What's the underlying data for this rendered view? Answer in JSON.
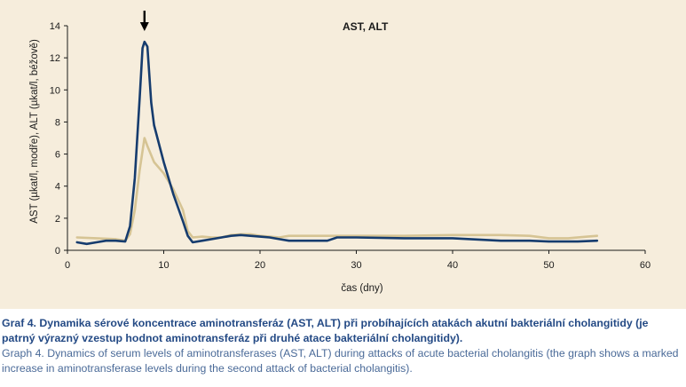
{
  "chart_data": {
    "type": "line",
    "title": "AST, ALT",
    "xlabel": "čas (dny)",
    "ylabel": "AST (µkat/l, modře), ALT (µkat/l, béžově)",
    "xlim": [
      0,
      60
    ],
    "ylim": [
      0,
      14
    ],
    "x_ticks": [
      "0",
      "10",
      "20",
      "30",
      "40",
      "50",
      "60"
    ],
    "y_ticks": [
      "0",
      "2",
      "4",
      "6",
      "8",
      "10",
      "12",
      "14"
    ],
    "grid": false,
    "annotation": {
      "type": "arrow",
      "x": 8,
      "pointing": "down"
    },
    "series": [
      {
        "name": "AST",
        "color": "#163c6e",
        "points": [
          [
            1,
            0.5
          ],
          [
            2,
            0.4
          ],
          [
            3,
            0.5
          ],
          [
            4,
            0.6
          ],
          [
            5,
            0.6
          ],
          [
            6,
            0.55
          ],
          [
            6.5,
            1.5
          ],
          [
            7,
            4.5
          ],
          [
            7.5,
            9.5
          ],
          [
            7.8,
            12.6
          ],
          [
            8,
            13.0
          ],
          [
            8.3,
            12.7
          ],
          [
            8.7,
            9.2
          ],
          [
            9,
            7.8
          ],
          [
            10,
            5.5
          ],
          [
            11,
            3.5
          ],
          [
            12,
            1.8
          ],
          [
            12.5,
            0.9
          ],
          [
            13,
            0.5
          ],
          [
            14,
            0.6
          ],
          [
            15,
            0.7
          ],
          [
            16,
            0.8
          ],
          [
            17,
            0.9
          ],
          [
            18,
            0.95
          ],
          [
            19,
            0.9
          ],
          [
            20,
            0.85
          ],
          [
            21,
            0.8
          ],
          [
            22,
            0.7
          ],
          [
            23,
            0.6
          ],
          [
            25,
            0.6
          ],
          [
            27,
            0.6
          ],
          [
            28,
            0.8
          ],
          [
            30,
            0.8
          ],
          [
            35,
            0.75
          ],
          [
            40,
            0.75
          ],
          [
            45,
            0.6
          ],
          [
            48,
            0.6
          ],
          [
            50,
            0.55
          ],
          [
            53,
            0.55
          ],
          [
            55,
            0.6
          ]
        ]
      },
      {
        "name": "ALT",
        "color": "#d6c494",
        "points": [
          [
            1,
            0.8
          ],
          [
            3,
            0.75
          ],
          [
            5,
            0.7
          ],
          [
            6,
            0.6
          ],
          [
            6.5,
            1.0
          ],
          [
            7,
            2.5
          ],
          [
            7.5,
            5.0
          ],
          [
            8,
            7.0
          ],
          [
            8.3,
            6.5
          ],
          [
            9,
            5.5
          ],
          [
            10,
            4.8
          ],
          [
            11,
            3.8
          ],
          [
            12,
            2.5
          ],
          [
            12.5,
            1.2
          ],
          [
            13,
            0.8
          ],
          [
            14,
            0.85
          ],
          [
            15,
            0.8
          ],
          [
            16,
            0.8
          ],
          [
            17,
            0.95
          ],
          [
            18,
            1.0
          ],
          [
            19,
            1.0
          ],
          [
            20,
            0.9
          ],
          [
            21,
            0.85
          ],
          [
            22,
            0.8
          ],
          [
            23,
            0.9
          ],
          [
            30,
            0.9
          ],
          [
            35,
            0.9
          ],
          [
            40,
            0.95
          ],
          [
            45,
            0.95
          ],
          [
            48,
            0.9
          ],
          [
            50,
            0.75
          ],
          [
            52,
            0.75
          ],
          [
            54,
            0.85
          ],
          [
            55,
            0.9
          ]
        ]
      }
    ]
  },
  "caption": {
    "cz": "Graf 4. Dynamika sérové koncentrace aminotransferáz (AST, ALT) při probíhajících atakách akutní bakteriální cholangitidy (je patrný výrazný vzestup hodnot aminotransferáz při druhé atace bakteriální cholangitidy).",
    "en": "Graph 4. Dynamics of serum levels of aminotransferases (AST, ALT) during attacks of acute bacterial cholangitis (the graph shows a marked increase in aminotransferase levels during the second attack of bacterial cholangitis)."
  }
}
